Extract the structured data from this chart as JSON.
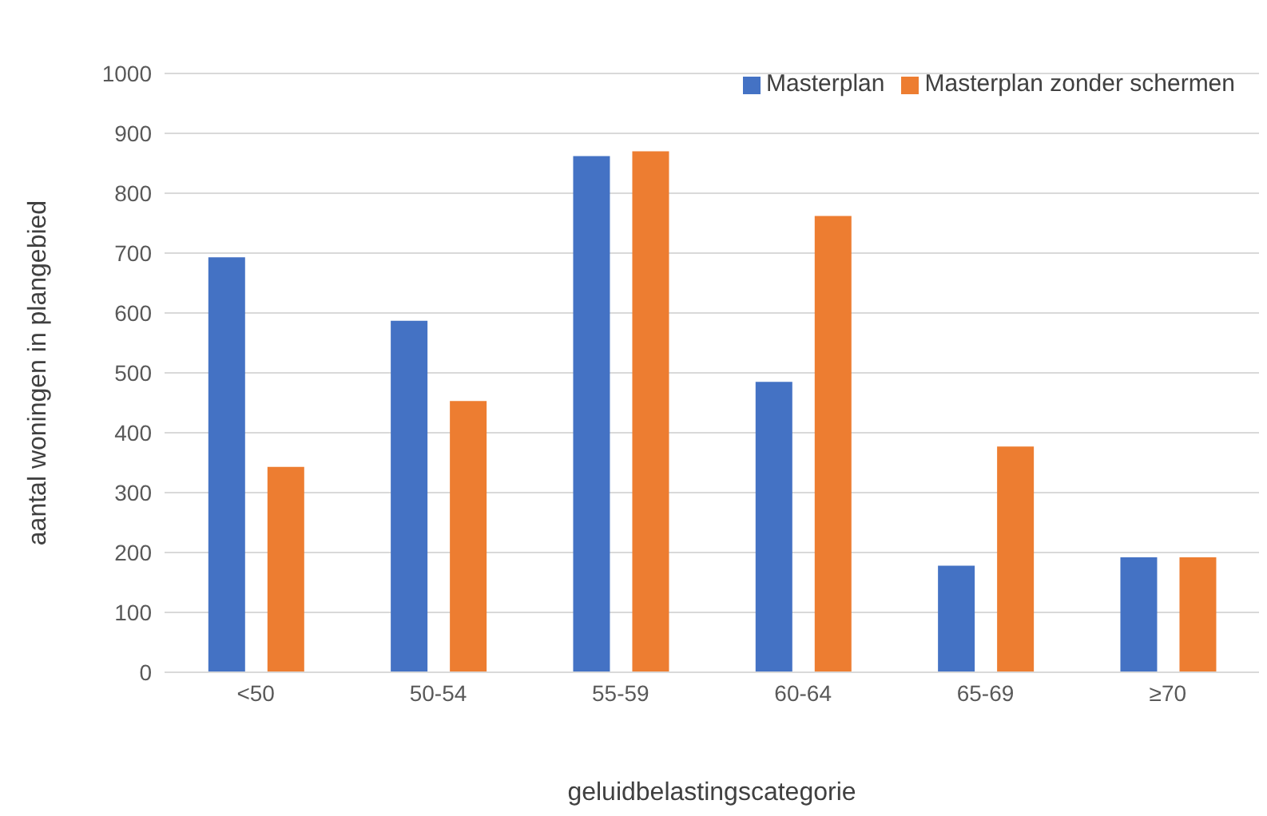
{
  "chart_data": {
    "type": "bar",
    "xlabel": "geluidbelastingscategorie",
    "ylabel": "aantal woningen in plangebied",
    "categories": [
      "<50",
      "50-54",
      "55-59",
      "60-64",
      "65-69",
      "≥70"
    ],
    "series": [
      {
        "name": "Masterplan",
        "color": "#4472c4",
        "values": [
          693,
          587,
          862,
          485,
          178,
          192
        ]
      },
      {
        "name": "Masterplan zonder schermen",
        "color": "#ed7d31",
        "values": [
          343,
          453,
          870,
          762,
          377,
          192
        ]
      }
    ],
    "ylim": [
      0,
      1000
    ],
    "yticks": [
      0,
      100,
      200,
      300,
      400,
      500,
      600,
      700,
      800,
      900,
      1000
    ],
    "grid": "y",
    "legend": "top right"
  }
}
